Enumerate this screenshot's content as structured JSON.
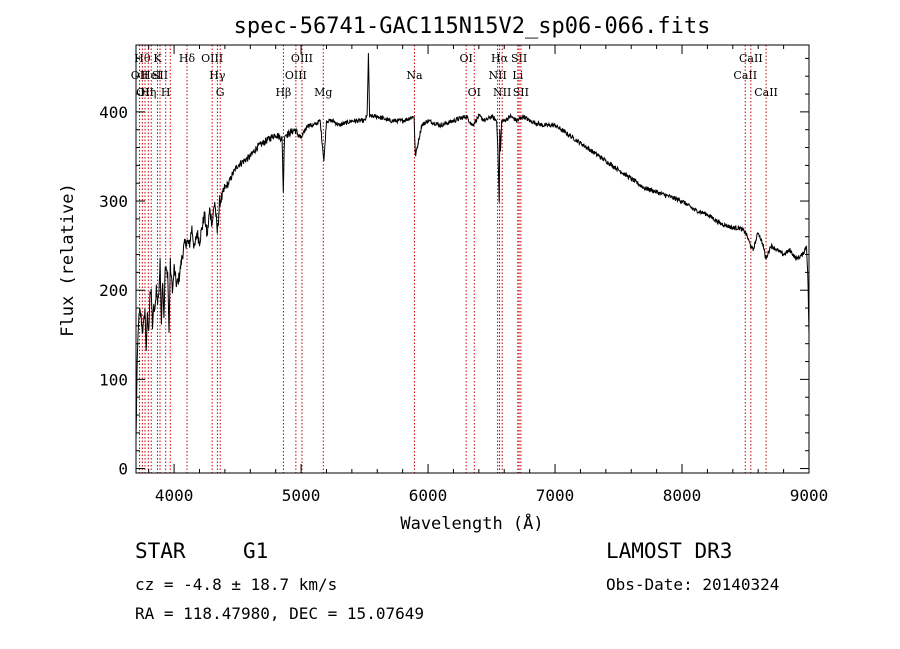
{
  "chart_data": {
    "type": "line",
    "title": "spec-56741-GAC115N15V2_sp06-066.fits",
    "xlabel": "Wavelength (Å)",
    "ylabel": "Flux (relative)",
    "xlim": [
      3700,
      9000
    ],
    "ylim": [
      -5,
      475
    ],
    "x_ticks": [
      4000,
      5000,
      6000,
      7000,
      8000,
      9000
    ],
    "y_ticks": [
      0,
      100,
      200,
      300,
      400
    ],
    "x_minor_step": 200,
    "y_minor_step": 20,
    "grid": false,
    "series": [
      {
        "name": "flux",
        "x": [
          3700,
          3710,
          3720,
          3730,
          3740,
          3750,
          3760,
          3770,
          3780,
          3790,
          3800,
          3810,
          3820,
          3830,
          3840,
          3850,
          3860,
          3870,
          3880,
          3890,
          3900,
          3910,
          3920,
          3930,
          3940,
          3950,
          3960,
          3970,
          3980,
          3990,
          4000,
          4020,
          4040,
          4060,
          4080,
          4100,
          4120,
          4140,
          4160,
          4180,
          4200,
          4220,
          4240,
          4260,
          4280,
          4300,
          4320,
          4340,
          4360,
          4380,
          4400,
          4430,
          4460,
          4500,
          4550,
          4600,
          4650,
          4700,
          4750,
          4800,
          4850,
          4860,
          4870,
          4880,
          4900,
          4950,
          5000,
          5050,
          5100,
          5150,
          5180,
          5200,
          5250,
          5300,
          5400,
          5500,
          5520,
          5530,
          5540,
          5600,
          5700,
          5800,
          5890,
          5900,
          5950,
          6000,
          6100,
          6200,
          6300,
          6350,
          6400,
          6450,
          6500,
          6540,
          6550,
          6560,
          6565,
          6570,
          6580,
          6600,
          6650,
          6700,
          6750,
          6800,
          6900,
          7000,
          7100,
          7200,
          7300,
          7400,
          7500,
          7600,
          7700,
          7800,
          7900,
          8000,
          8100,
          8200,
          8300,
          8400,
          8450,
          8500,
          8540,
          8560,
          8600,
          8640,
          8660,
          8700,
          8750,
          8800,
          8850,
          8900,
          8950,
          8980,
          8990,
          9000
        ],
        "y": [
          30,
          120,
          165,
          175,
          170,
          155,
          160,
          180,
          135,
          170,
          150,
          200,
          195,
          160,
          180,
          175,
          205,
          185,
          200,
          230,
          165,
          215,
          170,
          225,
          220,
          220,
          150,
          230,
          210,
          200,
          225,
          205,
          215,
          235,
          250,
          255,
          250,
          270,
          245,
          265,
          255,
          270,
          285,
          260,
          290,
          275,
          300,
          265,
          300,
          305,
          315,
          320,
          330,
          340,
          345,
          350,
          360,
          365,
          370,
          375,
          370,
          310,
          375,
          375,
          375,
          380,
          370,
          385,
          385,
          390,
          345,
          390,
          390,
          385,
          390,
          390,
          395,
          465,
          395,
          395,
          390,
          390,
          395,
          350,
          385,
          390,
          385,
          390,
          395,
          385,
          395,
          390,
          395,
          390,
          360,
          300,
          380,
          355,
          390,
          390,
          395,
          390,
          395,
          390,
          385,
          385,
          375,
          365,
          355,
          345,
          335,
          325,
          315,
          310,
          305,
          300,
          290,
          285,
          275,
          270,
          270,
          265,
          250,
          245,
          265,
          250,
          235,
          250,
          245,
          240,
          245,
          235,
          240,
          250,
          220,
          150
        ]
      }
    ],
    "lines": [
      {
        "x": 3728,
        "label": "OII",
        "row": 2
      },
      {
        "x": 3750,
        "label": "Hθ",
        "row": 1
      },
      {
        "x": 3771,
        "label": "OII",
        "row": 3
      },
      {
        "x": 3797,
        "label": "Hη",
        "row": 3
      },
      {
        "x": 3820,
        "label": "HeI",
        "row": 2
      },
      {
        "x": 3869,
        "label": "K",
        "row": 1
      },
      {
        "x": 3889,
        "label": "SII",
        "row": 2
      },
      {
        "x": 3934,
        "label": "H",
        "row": 3
      },
      {
        "x": 3970,
        "label": "",
        "row": 0
      },
      {
        "x": 4102,
        "label": "Hδ",
        "row": 1
      },
      {
        "x": 4300,
        "label": "OIII",
        "row": 1
      },
      {
        "x": 4341,
        "label": "Hγ",
        "row": 2
      },
      {
        "x": 4363,
        "label": "G",
        "row": 3
      },
      {
        "x": 4861,
        "label": "Hβ",
        "row": 3
      },
      {
        "x": 4959,
        "label": "OIII",
        "row": 2
      },
      {
        "x": 5007,
        "label": "OIII",
        "row": 1
      },
      {
        "x": 5175,
        "label": "Mg",
        "row": 3
      },
      {
        "x": 5893,
        "label": "Na",
        "row": 2
      },
      {
        "x": 6300,
        "label": "OI",
        "row": 1
      },
      {
        "x": 6364,
        "label": "OI",
        "row": 3
      },
      {
        "x": 6548,
        "label": "NII",
        "row": 2
      },
      {
        "x": 6563,
        "label": "Hα",
        "row": 1
      },
      {
        "x": 6584,
        "label": "NII",
        "row": 3
      },
      {
        "x": 6707,
        "label": "Li",
        "row": 2
      },
      {
        "x": 6717,
        "label": "SII",
        "row": 1
      },
      {
        "x": 6731,
        "label": "SII",
        "row": 3
      },
      {
        "x": 8498,
        "label": "CaII",
        "row": 2
      },
      {
        "x": 8542,
        "label": "CaII",
        "row": 1
      },
      {
        "x": 8662,
        "label": "CaII",
        "row": 3
      }
    ],
    "line_color": "#cc0000"
  },
  "info": {
    "object_type": "STAR",
    "subclass": "G1",
    "survey": "LAMOST DR3",
    "redshift": "cz = -4.8 ± 18.7 km/s",
    "obs_date": "Obs-Date: 20140324",
    "coords": "RA = 118.47980, DEC =  15.07649"
  }
}
